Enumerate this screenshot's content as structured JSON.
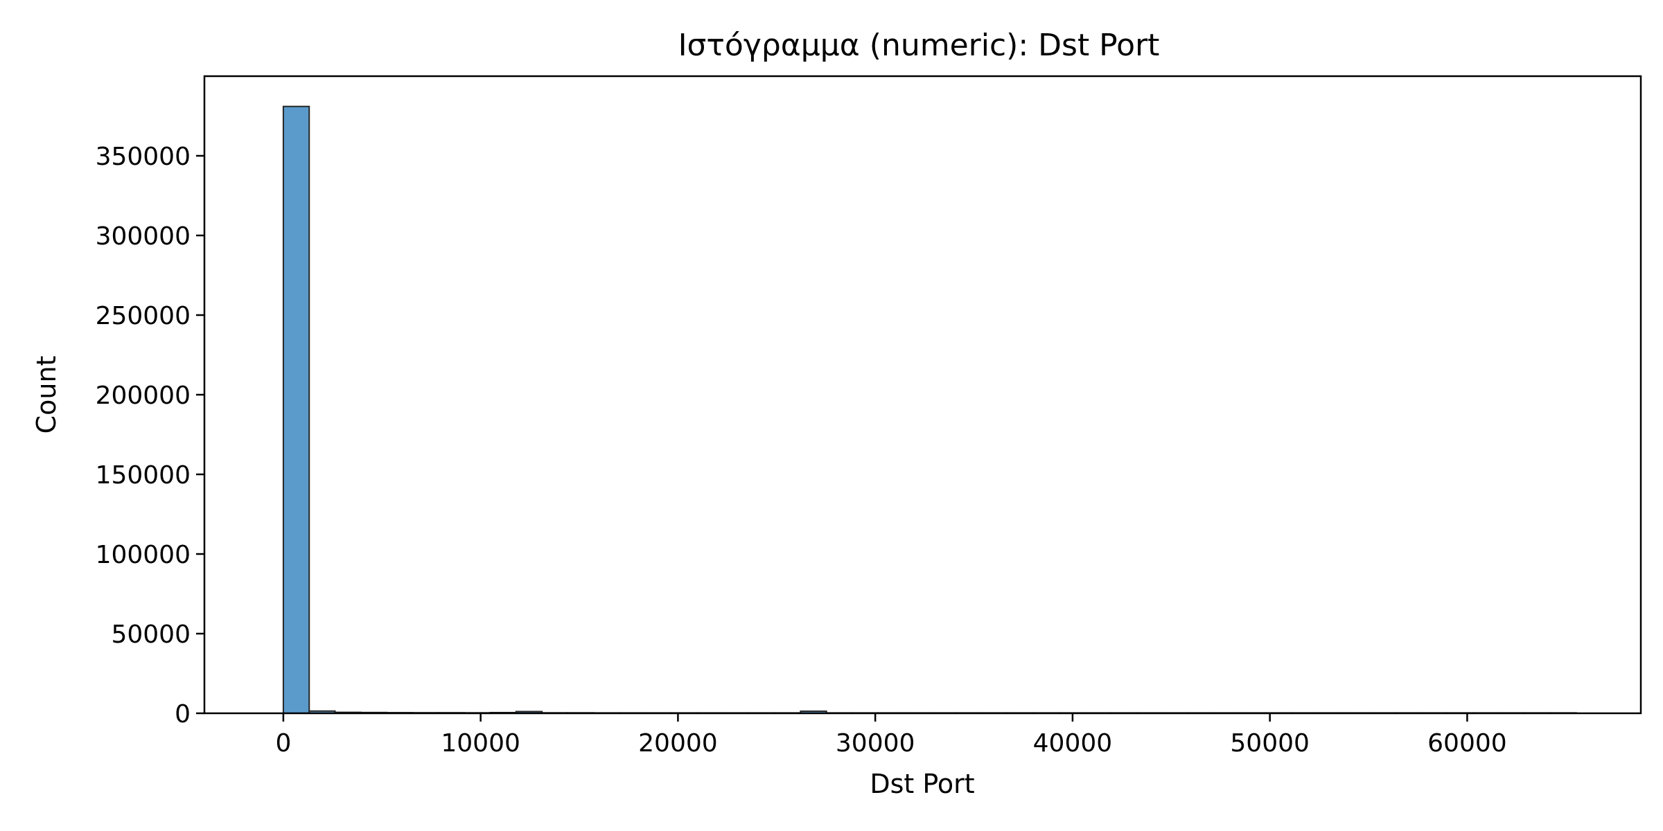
{
  "chart_data": {
    "type": "bar",
    "title": "Ιστόγραμμα (numeric): Dst Port",
    "xlabel": "Dst Port",
    "ylabel": "Count",
    "xlim": [
      -4000,
      68800
    ],
    "ylim": [
      0,
      400000
    ],
    "xticks": [
      0,
      10000,
      20000,
      30000,
      40000,
      50000,
      60000
    ],
    "yticks": [
      0,
      50000,
      100000,
      150000,
      200000,
      250000,
      300000,
      350000
    ],
    "bin_start": 0,
    "bin_width": 1310.7,
    "values": [
      381000,
      1400,
      600,
      500,
      400,
      350,
      350,
      300,
      450,
      1100,
      300,
      300,
      250,
      250,
      250,
      250,
      250,
      250,
      250,
      250,
      1300,
      250,
      250,
      250,
      250,
      250,
      250,
      250,
      250,
      250,
      250,
      250,
      250,
      250,
      250,
      250,
      250,
      250,
      250,
      250,
      250,
      250,
      250,
      250,
      250,
      250,
      250,
      250,
      250,
      250
    ],
    "bar_color": "#5b9bcb",
    "grid": false,
    "legend": "none"
  }
}
